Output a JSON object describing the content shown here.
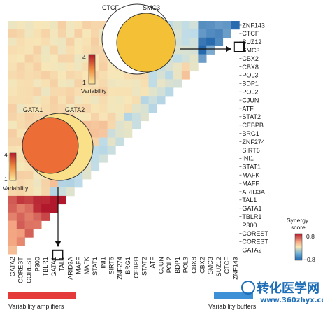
{
  "chart_data": {
    "type": "heatmap",
    "shape": "lower-triangle",
    "row_labels": [
      "ZNF143",
      "CTCF",
      "SUZ12",
      "SMC3",
      "CBX2",
      "CBX8",
      "POL3",
      "BDP1",
      "POL2",
      "CJUN",
      "ATF",
      "STAT2",
      "CEBPB",
      "BRG1",
      "ZNF274",
      "SIRT6",
      "INI1",
      "STAT1",
      "MAFK",
      "MAFF",
      "ARID3A",
      "TAL1",
      "GATA1",
      "TBLR1",
      "P300",
      "COREST",
      "COREST",
      "GATA2"
    ],
    "column_labels": [
      "GATA2",
      "COREST",
      "COREST",
      "P300",
      "TBLR1",
      "GATA1",
      "TAL1",
      "ARID3A",
      "MAFF",
      "MAFK",
      "STAT1",
      "INI1",
      "SIRT6",
      "ZNF274",
      "BRG1",
      "CEBPB",
      "STAT2",
      "ATF",
      "CJUN",
      "POL2",
      "BDP1",
      "POL3",
      "CBX8",
      "CBX2",
      "SMC3",
      "SUZ12",
      "CTCF",
      "ZNF143"
    ],
    "colorbar": {
      "title_line1": "Synergy",
      "title_line2": "score",
      "max_label": "0.8",
      "min_label": "−0.8",
      "range": [
        -0.8,
        0.8
      ]
    },
    "colors": {
      "high": "#b2182b",
      "mid_high": "#f4a582",
      "neutral": "#f7e7b8",
      "low": "#2166ac"
    }
  },
  "venn_top": {
    "label_a": "CTCF",
    "label_b": "SMC3",
    "scale_max": "4",
    "scale_min": "1",
    "scale_label": "Variability"
  },
  "venn_left": {
    "label_a": "GATA1",
    "label_b": "GATA2",
    "scale_max": "4",
    "scale_min": "1",
    "scale_label": "Variability"
  },
  "legend": {
    "amplifiers": "Variability amplifiers",
    "buffers": "Variability buffers"
  },
  "watermark": {
    "main": "转化医学网",
    "url": "www.360zhyx.com"
  }
}
